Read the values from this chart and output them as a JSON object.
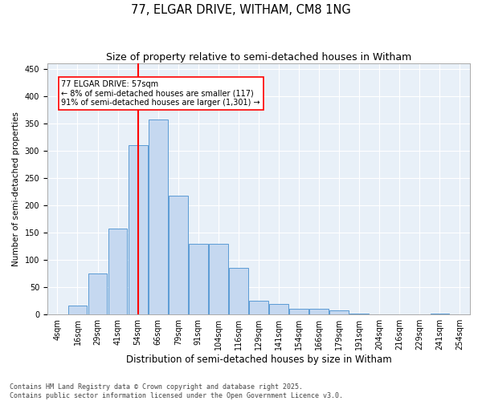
{
  "title": "77, ELGAR DRIVE, WITHAM, CM8 1NG",
  "subtitle": "Size of property relative to semi-detached houses in Witham",
  "xlabel": "Distribution of semi-detached houses by size in Witham",
  "ylabel": "Number of semi-detached properties",
  "categories": [
    "4sqm",
    "16sqm",
    "29sqm",
    "41sqm",
    "54sqm",
    "66sqm",
    "79sqm",
    "91sqm",
    "104sqm",
    "116sqm",
    "129sqm",
    "141sqm",
    "154sqm",
    "166sqm",
    "179sqm",
    "191sqm",
    "204sqm",
    "216sqm",
    "229sqm",
    "241sqm",
    "254sqm"
  ],
  "bar_heights": [
    0,
    17,
    75,
    158,
    310,
    358,
    218,
    130,
    130,
    85,
    25,
    20,
    11,
    11,
    7,
    2,
    0,
    0,
    0,
    2,
    0
  ],
  "bar_color": "#c5d8f0",
  "bar_edge_color": "#5b9bd5",
  "vline_x": 4,
  "vline_color": "red",
  "annotation_text": "77 ELGAR DRIVE: 57sqm\n← 8% of semi-detached houses are smaller (117)\n91% of semi-detached houses are larger (1,301) →",
  "annotation_fontsize": 7.0,
  "ylim": [
    0,
    460
  ],
  "yticks": [
    0,
    50,
    100,
    150,
    200,
    250,
    300,
    350,
    400,
    450
  ],
  "background_color": "#e8f0f8",
  "footer_text": "Contains HM Land Registry data © Crown copyright and database right 2025.\nContains public sector information licensed under the Open Government Licence v3.0.",
  "title_fontsize": 10.5,
  "subtitle_fontsize": 9,
  "xlabel_fontsize": 8.5,
  "ylabel_fontsize": 7.5,
  "tick_fontsize": 7
}
